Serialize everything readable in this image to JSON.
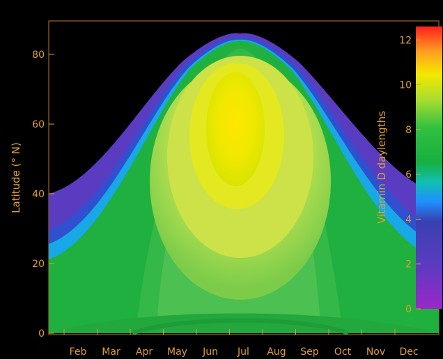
{
  "chart_data": {
    "type": "heatmap",
    "xlabel": "",
    "ylabel": "Latitude (° N)",
    "x_ticks": [
      "Feb",
      "Mar",
      "Apr",
      "May",
      "Jun",
      "Jul",
      "Aug",
      "Sep",
      "Oct",
      "Nov",
      "Dec"
    ],
    "y_ticks": [
      0,
      20,
      40,
      60,
      80
    ],
    "ylim": [
      0,
      90
    ],
    "colorbar": {
      "label": "Vitamin D daylengths",
      "ticks": [
        0,
        2,
        4,
        6,
        8,
        10,
        12
      ],
      "range": [
        0,
        12.6
      ]
    },
    "series_description": {
      "boundary_latitude_winter": 40,
      "boundary_latitude_summer": 86,
      "peak_value": 10.4,
      "peak_center_latitude": 60,
      "peak_center_month": "Jul"
    },
    "colors": {
      "axis": "#e0a030",
      "background": "#000000"
    }
  }
}
